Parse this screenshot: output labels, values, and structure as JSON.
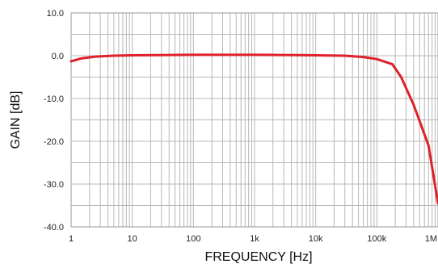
{
  "chart_data": {
    "type": "line",
    "title": "",
    "xlabel": "FREQUENCY [Hz]",
    "ylabel": "GAIN [dB]",
    "xscale": "log",
    "xlim": [
      1,
      1000000
    ],
    "ylim": [
      -40,
      10
    ],
    "grid": true,
    "x_tick_values": [
      1,
      10,
      100,
      1000,
      10000,
      100000,
      1000000
    ],
    "x_tick_labels": [
      "1",
      "10",
      "100",
      "1k",
      "10k",
      "100k",
      "1M"
    ],
    "y_tick_values": [
      10,
      0,
      -10,
      -20,
      -30,
      -40
    ],
    "y_tick_labels": [
      "10.0",
      "0.0",
      "-10.0",
      "-20.0",
      "-30.0",
      "-40.0"
    ],
    "series": [
      {
        "color": "#e0202a",
        "x": [
          1,
          1.5,
          2.5,
          5,
          10,
          100,
          1000,
          10000,
          30000,
          60000,
          100000,
          180000,
          250000,
          400000,
          700000,
          1000000
        ],
        "y": [
          -1.3,
          -0.6,
          -0.2,
          0,
          0.1,
          0.2,
          0.2,
          0.1,
          0,
          -0.3,
          -0.8,
          -2.0,
          -5.0,
          -11.5,
          -21.0,
          -34.5
        ]
      }
    ]
  }
}
